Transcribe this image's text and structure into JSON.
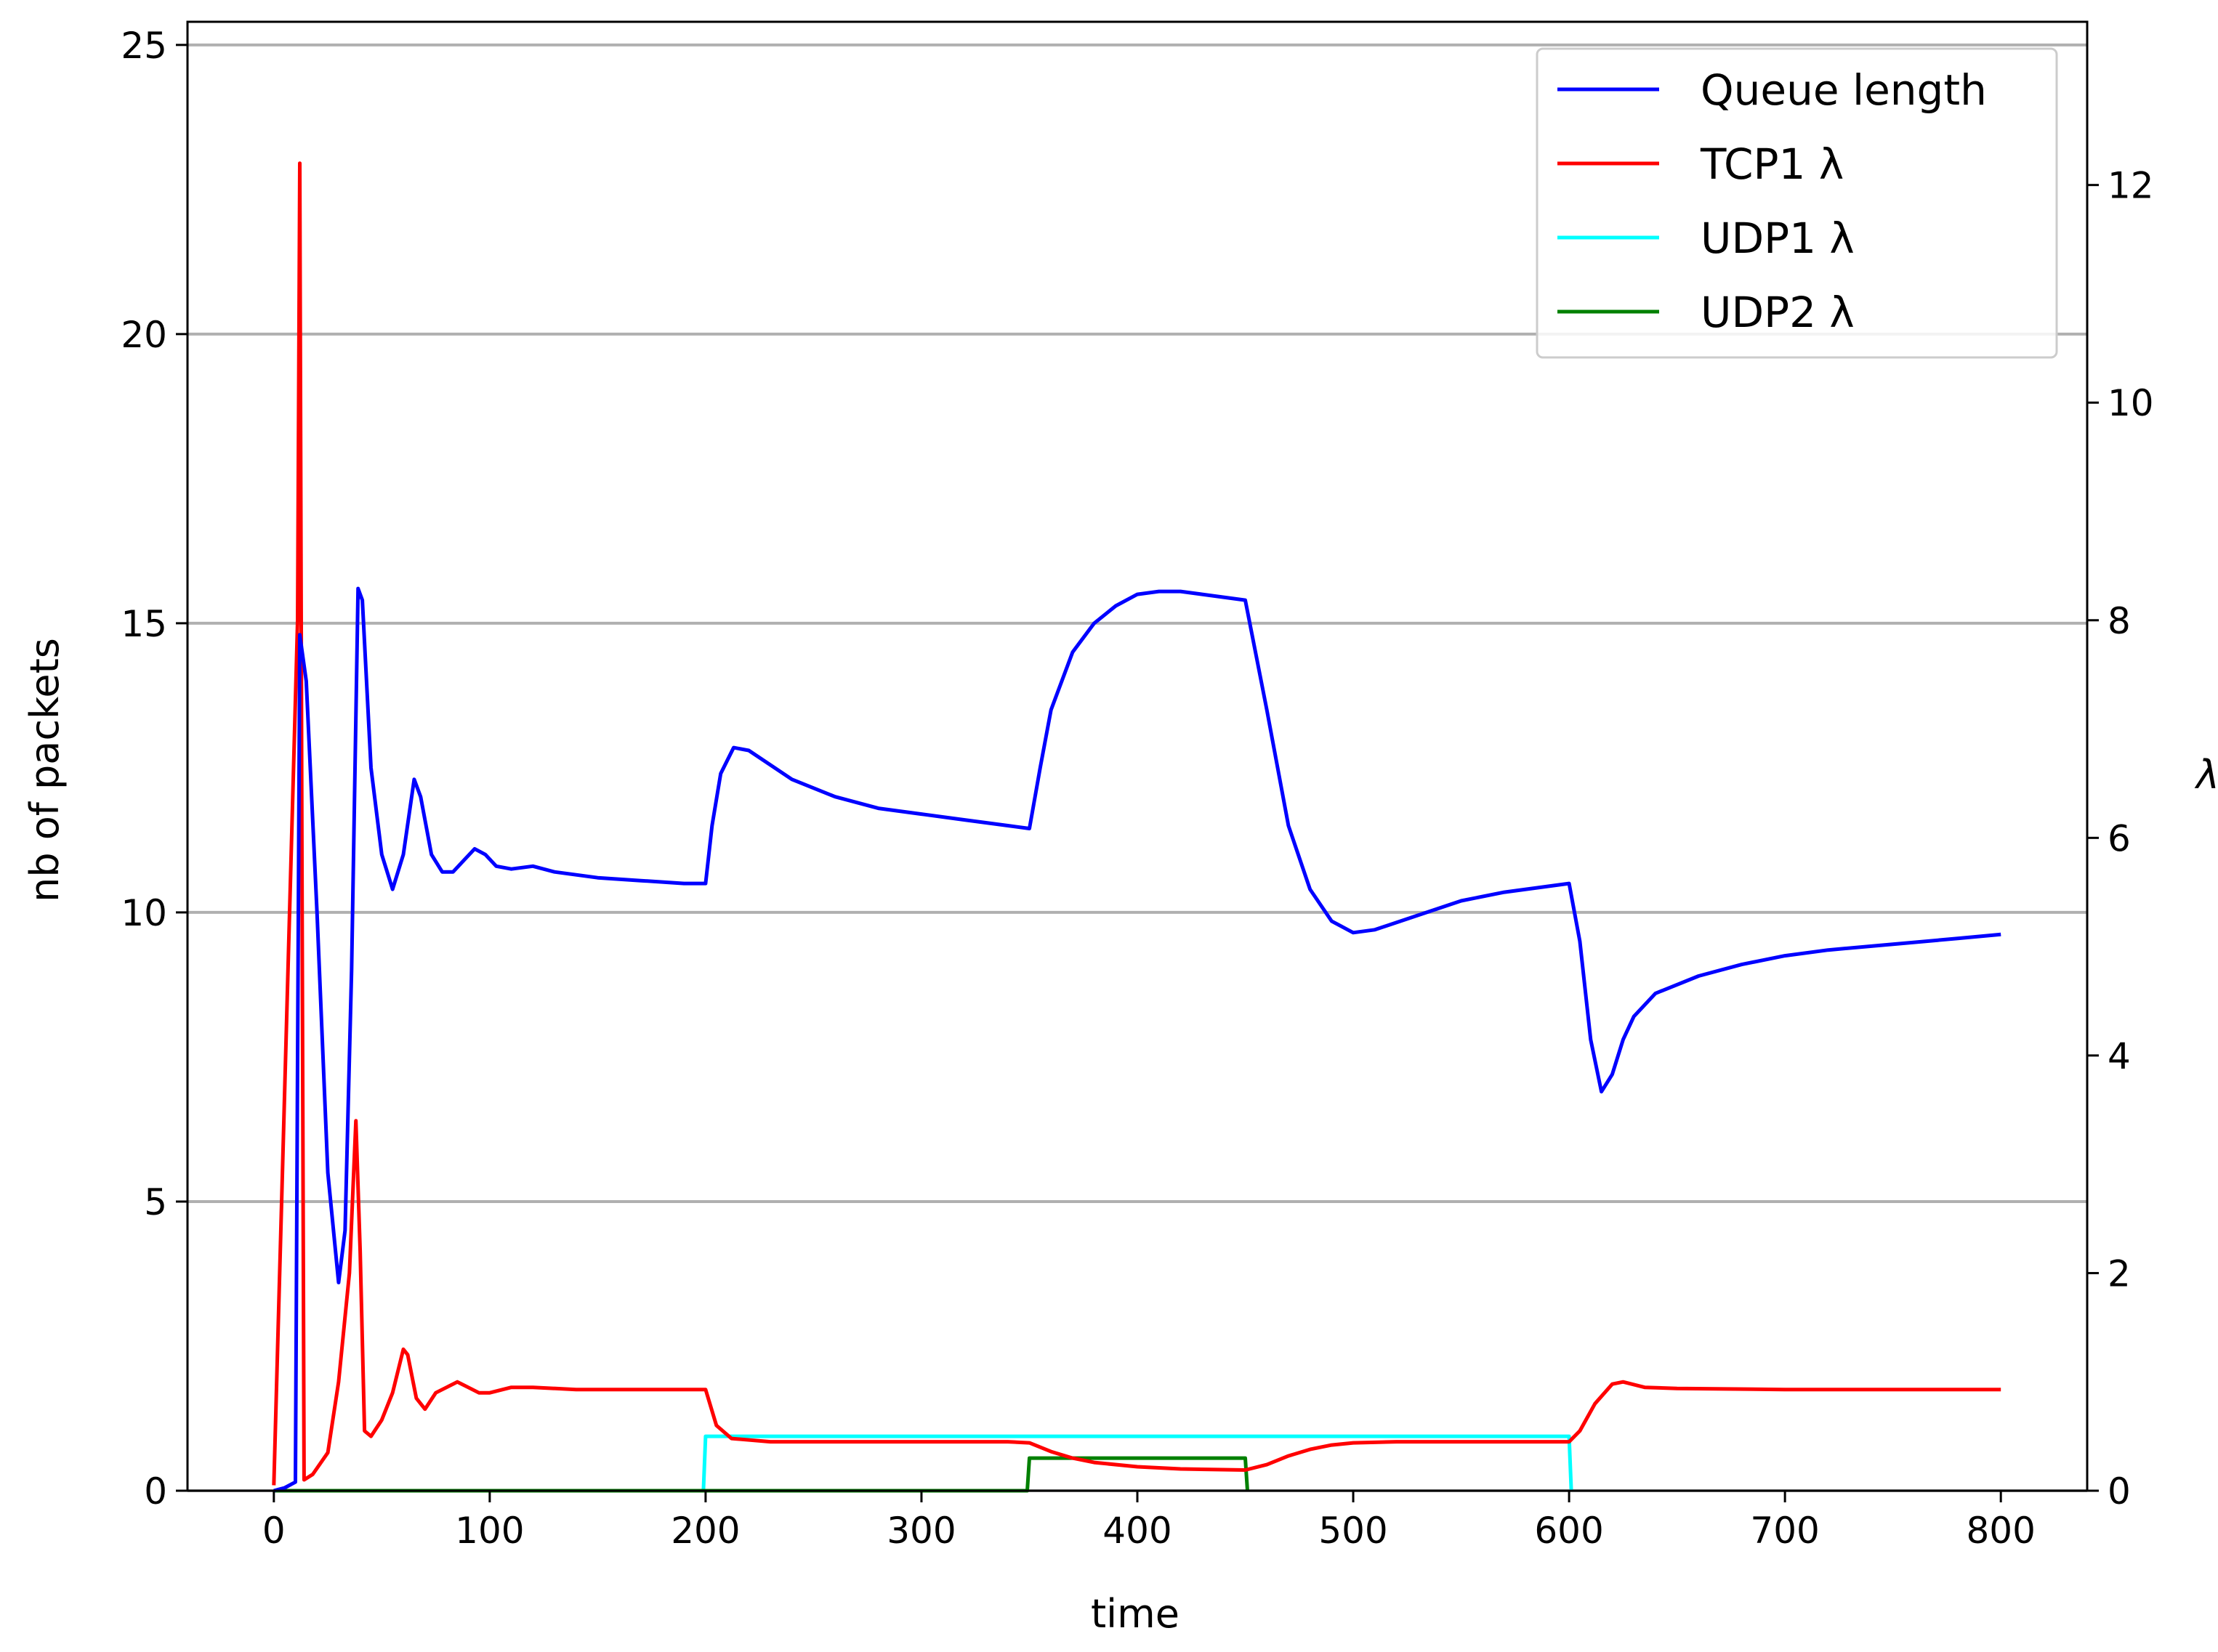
{
  "chart_data": {
    "type": "line",
    "xlabel": "time",
    "ylabel_left": "nb of packets",
    "ylabel_right": "λ",
    "xlim": [
      -40,
      840
    ],
    "ylim_left": [
      0,
      25.4
    ],
    "ylim_right": [
      0,
      13.5
    ],
    "x_ticks": [
      0,
      100,
      200,
      300,
      400,
      500,
      600,
      700,
      800
    ],
    "y_ticks_left": [
      0,
      5,
      10,
      15,
      20,
      25
    ],
    "y_ticks_right": [
      0,
      2,
      4,
      6,
      8,
      10,
      12
    ],
    "grid": "horizontal (left axis)",
    "legend_position": "top-right",
    "series": [
      {
        "name": "Queue length",
        "axis": "left",
        "color": "#0000ff",
        "points": [
          [
            0,
            0
          ],
          [
            5,
            0.05
          ],
          [
            10,
            0.15
          ],
          [
            12,
            14.8
          ],
          [
            15,
            14.0
          ],
          [
            20,
            10.0
          ],
          [
            25,
            5.5
          ],
          [
            30,
            3.6
          ],
          [
            33,
            4.5
          ],
          [
            36,
            9.0
          ],
          [
            39,
            15.6
          ],
          [
            41,
            15.4
          ],
          [
            45,
            12.5
          ],
          [
            50,
            11.0
          ],
          [
            55,
            10.4
          ],
          [
            60,
            11.0
          ],
          [
            65,
            12.3
          ],
          [
            68,
            12.0
          ],
          [
            73,
            11.0
          ],
          [
            78,
            10.7
          ],
          [
            83,
            10.7
          ],
          [
            88,
            10.9
          ],
          [
            93,
            11.1
          ],
          [
            98,
            11.0
          ],
          [
            103,
            10.8
          ],
          [
            110,
            10.75
          ],
          [
            120,
            10.8
          ],
          [
            130,
            10.7
          ],
          [
            150,
            10.6
          ],
          [
            170,
            10.55
          ],
          [
            190,
            10.5
          ],
          [
            200,
            10.5
          ],
          [
            203,
            11.5
          ],
          [
            207,
            12.4
          ],
          [
            213,
            12.85
          ],
          [
            220,
            12.8
          ],
          [
            240,
            12.3
          ],
          [
            260,
            12.0
          ],
          [
            280,
            11.8
          ],
          [
            300,
            11.7
          ],
          [
            320,
            11.6
          ],
          [
            340,
            11.5
          ],
          [
            350,
            11.45
          ],
          [
            355,
            12.5
          ],
          [
            360,
            13.5
          ],
          [
            370,
            14.5
          ],
          [
            380,
            15.0
          ],
          [
            390,
            15.3
          ],
          [
            400,
            15.5
          ],
          [
            410,
            15.55
          ],
          [
            420,
            15.55
          ],
          [
            430,
            15.5
          ],
          [
            440,
            15.45
          ],
          [
            450,
            15.4
          ],
          [
            460,
            13.5
          ],
          [
            470,
            11.5
          ],
          [
            480,
            10.4
          ],
          [
            490,
            9.85
          ],
          [
            500,
            9.65
          ],
          [
            510,
            9.7
          ],
          [
            530,
            9.95
          ],
          [
            550,
            10.2
          ],
          [
            570,
            10.35
          ],
          [
            590,
            10.45
          ],
          [
            600,
            10.5
          ],
          [
            605,
            9.5
          ],
          [
            610,
            7.8
          ],
          [
            615,
            6.9
          ],
          [
            620,
            7.2
          ],
          [
            625,
            7.8
          ],
          [
            630,
            8.2
          ],
          [
            640,
            8.6
          ],
          [
            660,
            8.9
          ],
          [
            680,
            9.1
          ],
          [
            700,
            9.25
          ],
          [
            720,
            9.35
          ],
          [
            750,
            9.45
          ],
          [
            780,
            9.55
          ],
          [
            800,
            9.62
          ]
        ]
      },
      {
        "name": "TCP1 λ",
        "axis": "right",
        "color": "#ff0000",
        "points": [
          [
            0,
            0.05
          ],
          [
            11,
            8
          ],
          [
            12,
            12.2
          ],
          [
            13,
            6
          ],
          [
            14,
            0.1
          ],
          [
            18,
            0.15
          ],
          [
            25,
            0.35
          ],
          [
            30,
            1.0
          ],
          [
            35,
            2.0
          ],
          [
            38,
            3.4
          ],
          [
            40,
            2.2
          ],
          [
            42,
            0.55
          ],
          [
            45,
            0.5
          ],
          [
            50,
            0.65
          ],
          [
            55,
            0.9
          ],
          [
            60,
            1.3
          ],
          [
            62,
            1.25
          ],
          [
            66,
            0.85
          ],
          [
            70,
            0.75
          ],
          [
            75,
            0.9
          ],
          [
            80,
            0.95
          ],
          [
            85,
            1.0
          ],
          [
            90,
            0.95
          ],
          [
            95,
            0.9
          ],
          [
            100,
            0.9
          ],
          [
            110,
            0.95
          ],
          [
            120,
            0.95
          ],
          [
            140,
            0.93
          ],
          [
            160,
            0.93
          ],
          [
            180,
            0.93
          ],
          [
            200,
            0.93
          ],
          [
            205,
            0.6
          ],
          [
            212,
            0.48
          ],
          [
            230,
            0.45
          ],
          [
            260,
            0.45
          ],
          [
            300,
            0.45
          ],
          [
            340,
            0.45
          ],
          [
            350,
            0.44
          ],
          [
            360,
            0.36
          ],
          [
            370,
            0.3
          ],
          [
            380,
            0.26
          ],
          [
            400,
            0.22
          ],
          [
            420,
            0.2
          ],
          [
            450,
            0.19
          ],
          [
            460,
            0.24
          ],
          [
            470,
            0.32
          ],
          [
            480,
            0.38
          ],
          [
            490,
            0.42
          ],
          [
            500,
            0.44
          ],
          [
            520,
            0.45
          ],
          [
            560,
            0.45
          ],
          [
            600,
            0.45
          ],
          [
            605,
            0.55
          ],
          [
            612,
            0.8
          ],
          [
            620,
            0.98
          ],
          [
            625,
            1.0
          ],
          [
            635,
            0.95
          ],
          [
            650,
            0.94
          ],
          [
            700,
            0.93
          ],
          [
            750,
            0.93
          ],
          [
            800,
            0.93
          ]
        ]
      },
      {
        "name": "UDP1 λ",
        "axis": "right",
        "color": "#00ffff",
        "points": [
          [
            0,
            0
          ],
          [
            199,
            0
          ],
          [
            200,
            0.5
          ],
          [
            600,
            0.5
          ],
          [
            601,
            0
          ],
          [
            601,
            0
          ]
        ]
      },
      {
        "name": "UDP2 λ",
        "axis": "right",
        "color": "#008000",
        "points": [
          [
            0,
            0
          ],
          [
            349,
            0
          ],
          [
            350,
            0.3
          ],
          [
            450,
            0.3
          ],
          [
            451,
            0
          ],
          [
            451,
            0
          ]
        ]
      }
    ]
  }
}
